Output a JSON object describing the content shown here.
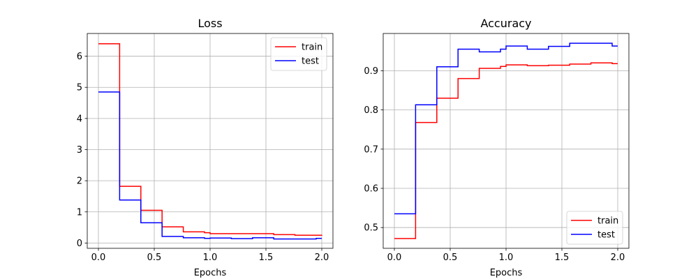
{
  "colors": {
    "train": "#ff0000",
    "test": "#0000ff",
    "grid": "#b0b0b0",
    "axes": "#000000"
  },
  "chart_data": [
    {
      "type": "line",
      "drawstyle": "steps-post",
      "title": "Loss",
      "xlabel": "Epochs",
      "ylabel": "",
      "xlim": [
        -0.1,
        2.1
      ],
      "ylim": [
        -0.17,
        6.73
      ],
      "xticks": [
        0.0,
        0.5,
        1.0,
        1.5,
        2.0
      ],
      "xtick_labels": [
        "0.0",
        "0.5",
        "1.0",
        "1.5",
        "2.0"
      ],
      "yticks": [
        0,
        1,
        2,
        3,
        4,
        5,
        6
      ],
      "ytick_labels": [
        "0",
        "1",
        "2",
        "3",
        "4",
        "5",
        "6"
      ],
      "grid": true,
      "legend": "upper right",
      "series": [
        {
          "name": "train",
          "color": "#ff0000",
          "x": [
            0.0,
            0.19,
            0.38,
            0.57,
            0.76,
            0.95,
            1.0,
            1.19,
            1.38,
            1.57,
            1.76,
            1.95,
            2.0
          ],
          "y": [
            6.4,
            1.82,
            1.05,
            0.52,
            0.36,
            0.33,
            0.3,
            0.3,
            0.3,
            0.27,
            0.25,
            0.25,
            0.26
          ]
        },
        {
          "name": "test",
          "color": "#0000ff",
          "x": [
            0.0,
            0.19,
            0.38,
            0.57,
            0.76,
            0.95,
            1.0,
            1.19,
            1.38,
            1.57,
            1.76,
            1.95,
            2.0
          ],
          "y": [
            4.85,
            1.38,
            0.65,
            0.21,
            0.17,
            0.15,
            0.16,
            0.14,
            0.17,
            0.13,
            0.13,
            0.15,
            0.15
          ]
        }
      ]
    },
    {
      "type": "line",
      "drawstyle": "steps-post",
      "title": "Accuracy",
      "xlabel": "Epochs",
      "ylabel": "",
      "xlim": [
        -0.1,
        2.1
      ],
      "ylim": [
        0.447,
        0.995
      ],
      "xticks": [
        0.0,
        0.5,
        1.0,
        1.5,
        2.0
      ],
      "xtick_labels": [
        "0.0",
        "0.5",
        "1.0",
        "1.5",
        "2.0"
      ],
      "yticks": [
        0.5,
        0.6,
        0.7,
        0.8,
        0.9
      ],
      "ytick_labels": [
        "0.5",
        "0.6",
        "0.7",
        "0.8",
        "0.9"
      ],
      "grid": true,
      "legend": "lower right",
      "series": [
        {
          "name": "train",
          "color": "#ff0000",
          "x": [
            0.0,
            0.19,
            0.38,
            0.57,
            0.76,
            0.95,
            1.0,
            1.19,
            1.38,
            1.57,
            1.76,
            1.95,
            2.0
          ],
          "y": [
            0.472,
            0.768,
            0.83,
            0.88,
            0.906,
            0.911,
            0.915,
            0.913,
            0.914,
            0.917,
            0.92,
            0.918,
            0.918
          ]
        },
        {
          "name": "test",
          "color": "#0000ff",
          "x": [
            0.0,
            0.19,
            0.38,
            0.57,
            0.76,
            0.95,
            1.0,
            1.19,
            1.38,
            1.57,
            1.76,
            1.95,
            2.0
          ],
          "y": [
            0.535,
            0.813,
            0.91,
            0.955,
            0.948,
            0.955,
            0.963,
            0.955,
            0.962,
            0.97,
            0.97,
            0.963,
            0.963
          ]
        }
      ]
    }
  ]
}
